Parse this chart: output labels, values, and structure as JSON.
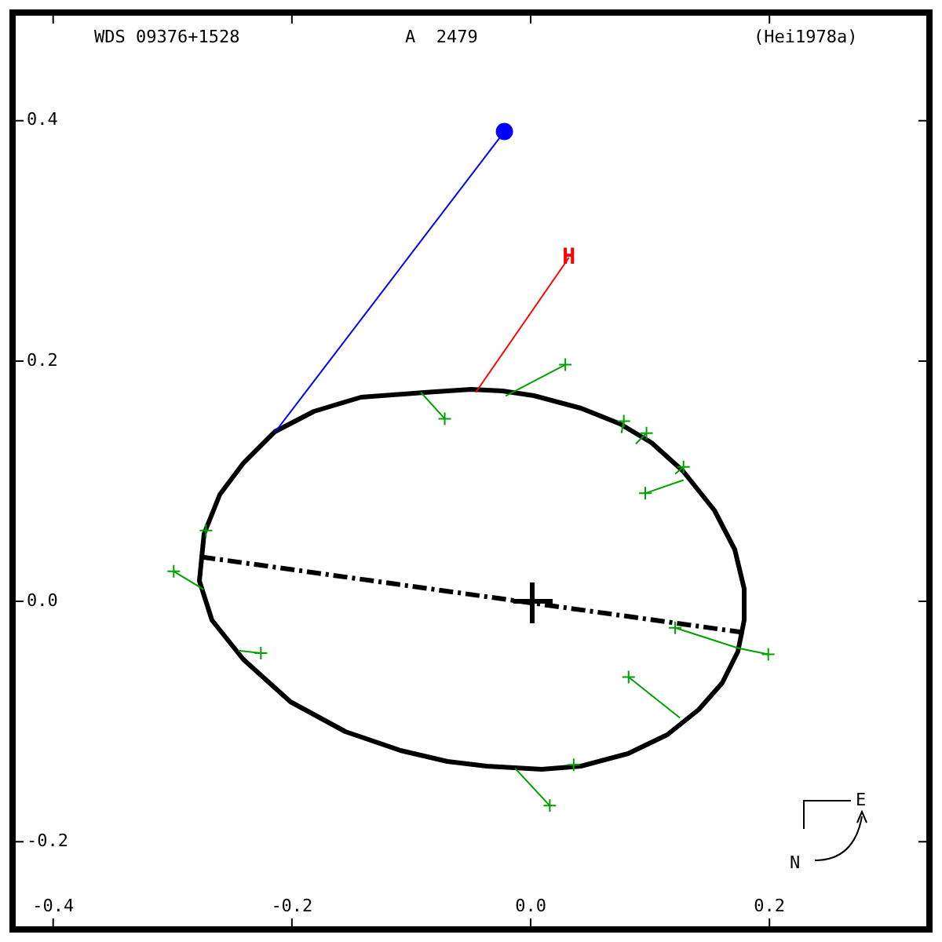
{
  "chart_data": {
    "type": "line",
    "title": "WDS 09376+1528",
    "subtitle": "A  2479",
    "annotations": [
      "(Hei1978a)",
      "E",
      "N",
      {
        "text": "H",
        "x": 0.032,
        "y": 0.286
      }
    ],
    "xlim": [
      -0.434,
      0.334
    ],
    "ylim": [
      -0.273,
      0.49
    ],
    "xticks": [
      -0.4,
      -0.2,
      {
        "value": 0,
        "label": "0.0"
      },
      0.2
    ],
    "yticks": [
      -0.2,
      {
        "value": 0,
        "label": "0.0"
      },
      0.2,
      0.4
    ],
    "grid": false,
    "legend": false,
    "series": [
      {
        "type": "line",
        "color": "#000000",
        "marker": "none",
        "line_style": "dashed",
        "x": [
          -0.276,
          0.179
        ],
        "values": [
          0.037,
          -0.026
        ]
      },
      {
        "type": "line",
        "color": "#00a000",
        "marker": "none",
        "x": [
          0.029,
          -0.021,
          null,
          -0.072,
          -0.092,
          null,
          0.078,
          0.076,
          null,
          0.097,
          0.088,
          null,
          0.128,
          0.121,
          null,
          0.096,
          0.128,
          null,
          -0.299,
          -0.274,
          null,
          -0.226,
          -0.245,
          null,
          0.121,
          0.174,
          null,
          0.199,
          0.174,
          null,
          0.082,
          0.125,
          null,
          0.016,
          -0.013
        ],
        "values": [
          0.197,
          0.171,
          null,
          0.152,
          0.174,
          null,
          0.15,
          0.14,
          null,
          0.14,
          0.131,
          null,
          0.112,
          0.106,
          null,
          0.09,
          0.101,
          null,
          0.025,
          0.01,
          null,
          -0.043,
          -0.041,
          null,
          -0.022,
          -0.039,
          null,
          -0.044,
          -0.039,
          null,
          -0.063,
          -0.097,
          null,
          -0.17,
          -0.139
        ]
      },
      {
        "type": "scatter",
        "color": "#00a000",
        "marker": "cross",
        "x": [
          0.029,
          -0.072,
          0.078,
          0.097,
          0.128,
          0.096,
          -0.272,
          -0.299,
          -0.226,
          0.121,
          0.199,
          0.082,
          0.036,
          0.016
        ],
        "values": [
          0.197,
          0.152,
          0.15,
          0.14,
          0.112,
          0.09,
          0.059,
          0.025,
          -0.043,
          -0.022,
          -0.044,
          -0.063,
          -0.136,
          -0.17
        ]
      },
      {
        "type": "line",
        "color": "#0000ff",
        "marker": "none",
        "x": [
          -0.214,
          -0.022
        ],
        "values": [
          0.141,
          0.391
        ]
      },
      {
        "type": "scatter",
        "color": "#0000ff",
        "marker": "circle",
        "x": [
          -0.022
        ],
        "values": [
          0.391
        ]
      },
      {
        "type": "line",
        "color": "#ff0000",
        "marker": "none",
        "x": [
          -0.046,
          0.032
        ],
        "values": [
          0.174,
          0.286
        ]
      }
    ]
  }
}
